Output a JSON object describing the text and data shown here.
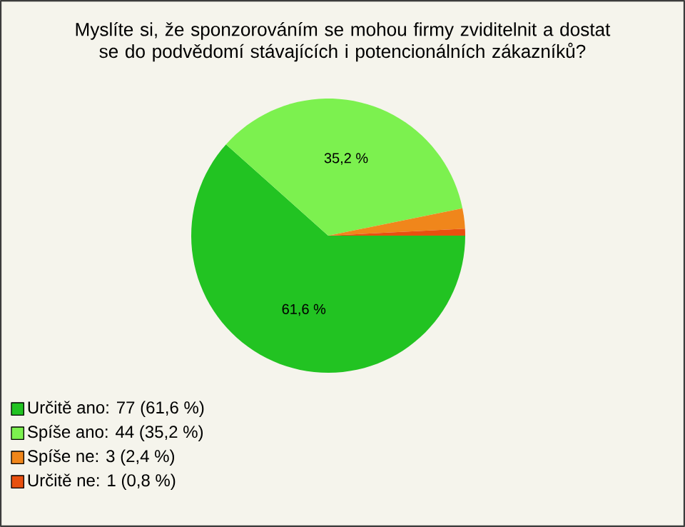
{
  "chart_data": {
    "type": "pie",
    "title": "Myslíte si, že sponzorováním se mohou firmy zviditelnit a dostat se do podvědomí stávajících i potencionálních zákazníků?",
    "categories": [
      "Určitě ano: 77 (61,6 %)",
      "Spíše ano: 44 (35,2 %)",
      "Spíše ne: 3 (2,4 %)",
      "Určitě ne: 1 (0,8 %)"
    ],
    "values": [
      61.6,
      35.2,
      2.4,
      0.8
    ],
    "value_labels": [
      "61,6 %",
      "35,2 %",
      null,
      null
    ],
    "colors": [
      "#22c322",
      "#7cf14f",
      "#f0861b",
      "#e8500f"
    ],
    "legend": "bottom left"
  }
}
